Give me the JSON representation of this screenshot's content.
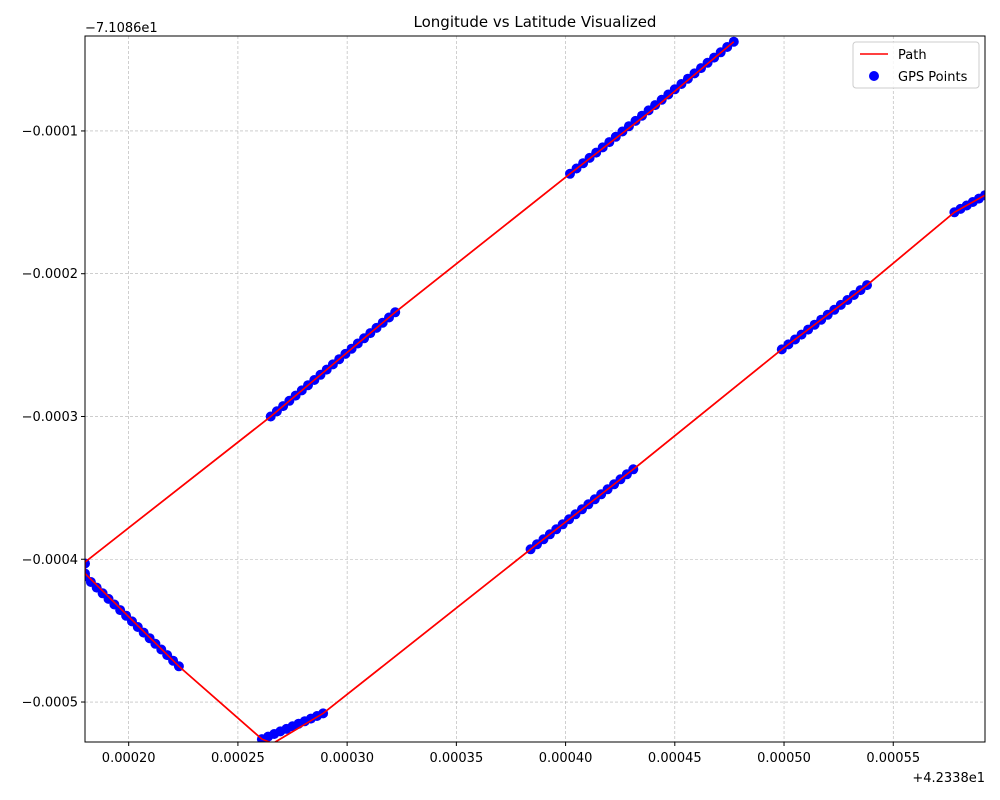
{
  "chart_data": {
    "type": "scatter",
    "title": "Longitude vs Latitude Visualized",
    "xlabel": "",
    "ylabel": "",
    "x_offset_label": "+4.2338e1",
    "y_offset_label": "−7.1086e1",
    "xlim": [
      0.00018,
      0.000592
    ],
    "ylim": [
      -0.000528,
      -3.35e-05
    ],
    "x_ticks": [
      0.0002,
      0.00025,
      0.0003,
      0.00035,
      0.0004,
      0.00045,
      0.0005,
      0.00055
    ],
    "x_tick_labels": [
      "0.00020",
      "0.00025",
      "0.00030",
      "0.00035",
      "0.00040",
      "0.00045",
      "0.00050",
      "0.00055"
    ],
    "y_ticks": [
      -0.0001,
      -0.0002,
      -0.0003,
      -0.0004,
      -0.0005
    ],
    "y_tick_labels": [
      "−0.0001",
      "−0.0002",
      "−0.0003",
      "−0.0004",
      "−0.0005"
    ],
    "grid": true,
    "legend_position": "top-right",
    "colors": {
      "path": "#ff0000",
      "points": "#0000ff",
      "grid": "#b0b0b0"
    },
    "series": [
      {
        "name": "Path",
        "style": "line",
        "points": [
          [
            0.000477,
            -3.75e-05
          ],
          [
            0.00044,
            -8.5e-05
          ],
          [
            0.000402,
            -0.00013
          ],
          [
            0.000322,
            -0.000227
          ],
          [
            0.000265,
            -0.0003
          ],
          [
            0.00018,
            -0.000402
          ],
          [
            0.00018,
            -0.00041
          ],
          [
            0.000223,
            -0.000475
          ],
          [
            0.000261,
            -0.000526
          ],
          [
            0.000266,
            -0.000529
          ],
          [
            0.000289,
            -0.000508
          ],
          [
            0.000384,
            -0.000393
          ],
          [
            0.000431,
            -0.000337
          ],
          [
            0.000499,
            -0.000253
          ],
          [
            0.000538,
            -0.000208
          ],
          [
            0.000578,
            -0.000157
          ],
          [
            0.000592,
            -0.000145
          ]
        ]
      },
      {
        "name": "GPS Points",
        "style": "scatter",
        "segments": [
          {
            "from": [
              0.000477,
              -3.75e-05
            ],
            "to": [
              0.000402,
              -0.00013
            ],
            "n": 26
          },
          {
            "from": [
              0.000322,
              -0.000227
            ],
            "to": [
              0.000265,
              -0.0003
            ],
            "n": 21
          },
          {
            "from": [
              0.00018,
              -0.000403
            ],
            "to": [
              0.00018,
              -0.00041
            ],
            "n": 2
          },
          {
            "from": [
              0.00018,
              -0.000412
            ],
            "to": [
              0.000223,
              -0.000475
            ],
            "n": 17
          },
          {
            "from": [
              0.000261,
              -0.000526
            ],
            "to": [
              0.000289,
              -0.000508
            ],
            "n": 11
          },
          {
            "from": [
              0.000384,
              -0.000393
            ],
            "to": [
              0.000431,
              -0.000337
            ],
            "n": 17
          },
          {
            "from": [
              0.000499,
              -0.000253
            ],
            "to": [
              0.000538,
              -0.000208
            ],
            "n": 14
          },
          {
            "from": [
              0.000578,
              -0.000157
            ],
            "to": [
              0.000592,
              -0.000145
            ],
            "n": 6
          }
        ]
      }
    ]
  }
}
